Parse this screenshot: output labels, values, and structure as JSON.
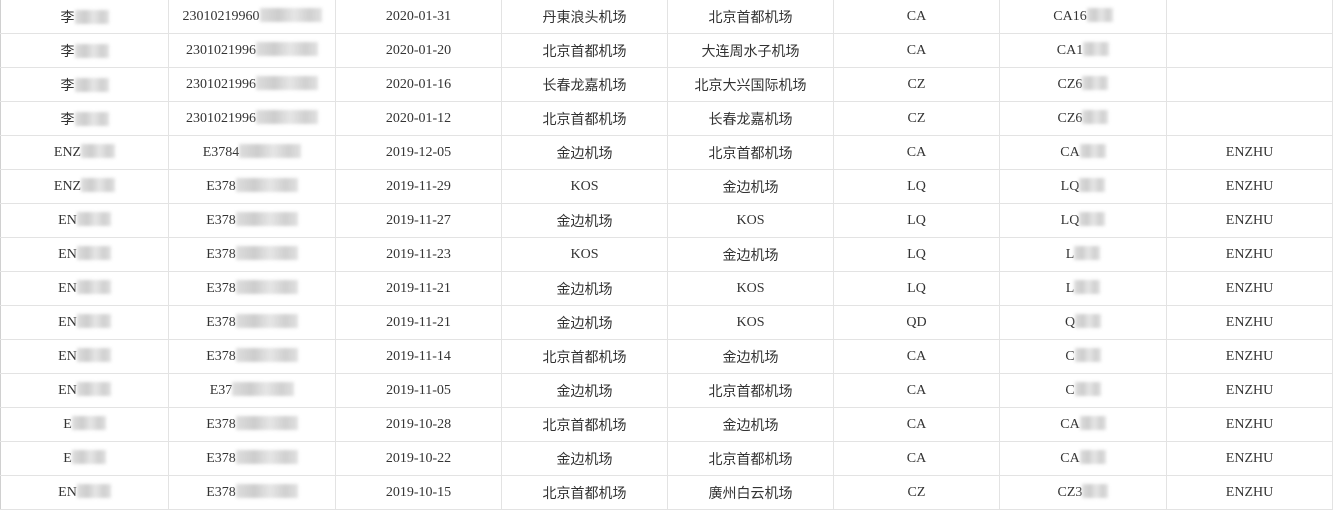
{
  "rows": [
    {
      "name": "李",
      "id": "23010219960",
      "date": "2020-01-31",
      "from": "丹東浪头机场",
      "to": "北京首都机场",
      "airline": "CA",
      "flight": "CA16",
      "pax": ""
    },
    {
      "name": "李",
      "id": "2301021996",
      "date": "2020-01-20",
      "from": "北京首都机场",
      "to": "大连周水子机场",
      "airline": "CA",
      "flight": "CA1",
      "pax": ""
    },
    {
      "name": "李",
      "id": "2301021996",
      "date": "2020-01-16",
      "from": "长春龙嘉机场",
      "to": "北京大兴国际机场",
      "airline": "CZ",
      "flight": "CZ6",
      "pax": ""
    },
    {
      "name": "李",
      "id": "2301021996",
      "date": "2020-01-12",
      "from": "北京首都机场",
      "to": "长春龙嘉机场",
      "airline": "CZ",
      "flight": "CZ6",
      "pax": ""
    },
    {
      "name": "ENZ",
      "id": "E3784",
      "date": "2019-12-05",
      "from": "金边机场",
      "to": "北京首都机场",
      "airline": "CA",
      "flight": "CA",
      "pax": "ENZHU"
    },
    {
      "name": "ENZ",
      "id": "E378",
      "date": "2019-11-29",
      "from": "KOS",
      "to": "金边机场",
      "airline": "LQ",
      "flight": "LQ",
      "pax": "ENZHU"
    },
    {
      "name": "EN",
      "id": "E378",
      "date": "2019-11-27",
      "from": "金边机场",
      "to": "KOS",
      "airline": "LQ",
      "flight": "LQ",
      "pax": "ENZHU"
    },
    {
      "name": "EN",
      "id": "E378",
      "date": "2019-11-23",
      "from": "KOS",
      "to": "金边机场",
      "airline": "LQ",
      "flight": "L",
      "pax": "ENZHU"
    },
    {
      "name": "EN",
      "id": "E378",
      "date": "2019-11-21",
      "from": "金边机场",
      "to": "KOS",
      "airline": "LQ",
      "flight": "L",
      "pax": "ENZHU"
    },
    {
      "name": "EN",
      "id": "E378",
      "date": "2019-11-21",
      "from": "金边机场",
      "to": "KOS",
      "airline": "QD",
      "flight": "Q",
      "pax": "ENZHU"
    },
    {
      "name": "EN",
      "id": "E378",
      "date": "2019-11-14",
      "from": "北京首都机场",
      "to": "金边机场",
      "airline": "CA",
      "flight": "C",
      "pax": "ENZHU"
    },
    {
      "name": "EN",
      "id": "E37",
      "date": "2019-11-05",
      "from": "金边机场",
      "to": "北京首都机场",
      "airline": "CA",
      "flight": "C",
      "pax": "ENZHU"
    },
    {
      "name": "E",
      "id": "E378",
      "date": "2019-10-28",
      "from": "北京首都机场",
      "to": "金边机场",
      "airline": "CA",
      "flight": "CA",
      "pax": "ENZHU"
    },
    {
      "name": "E",
      "id": "E378",
      "date": "2019-10-22",
      "from": "金边机场",
      "to": "北京首都机场",
      "airline": "CA",
      "flight": "CA",
      "pax": "ENZHU"
    },
    {
      "name": "EN",
      "id": "E378",
      "date": "2019-10-15",
      "from": "北京首都机场",
      "to": "廣州白云机场",
      "airline": "CZ",
      "flight": "CZ3",
      "pax": "ENZHU"
    }
  ]
}
